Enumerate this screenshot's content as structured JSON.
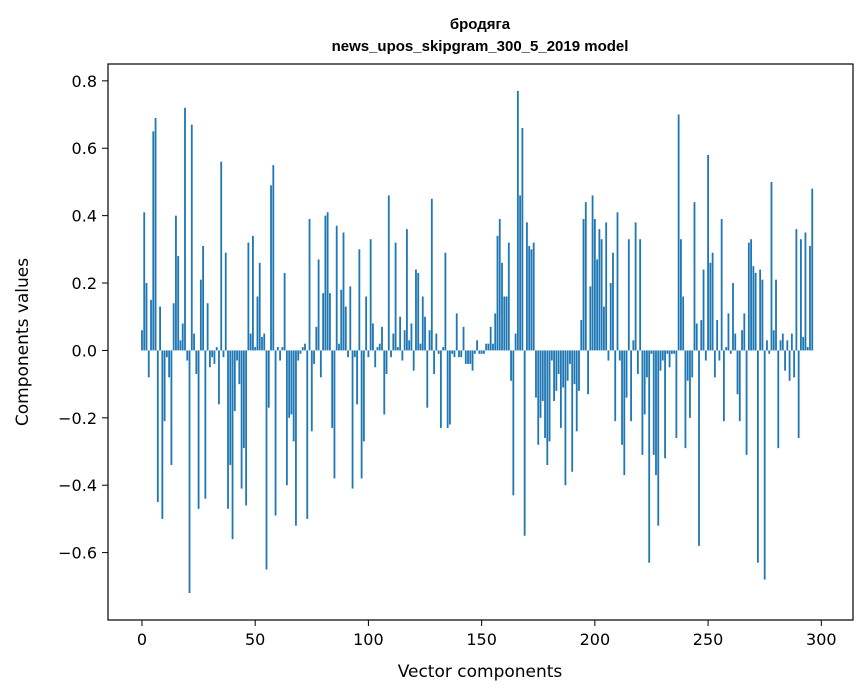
{
  "chart_data": {
    "type": "bar",
    "title": "бродяга",
    "subtitle": "news_upos_skipgram_300_5_2019 model",
    "xlabel": "Vector components",
    "ylabel": "Components values",
    "xlim": [
      -15,
      314
    ],
    "ylim": [
      -0.8,
      0.85
    ],
    "xticks": [
      0,
      50,
      100,
      150,
      200,
      250,
      300
    ],
    "yticks": [
      -0.6,
      -0.4,
      -0.2,
      0.0,
      0.2,
      0.4,
      0.6,
      0.8
    ],
    "ytick_labels": [
      "−0.6",
      "−0.4",
      "−0.2",
      "0.0",
      "0.2",
      "0.4",
      "0.6",
      "0.8"
    ],
    "grid": false,
    "bar_color": "#1f77b4",
    "values": [
      0.06,
      0.41,
      0.2,
      -0.08,
      0.15,
      0.65,
      0.69,
      -0.45,
      0.13,
      -0.5,
      -0.21,
      -0.02,
      -0.08,
      -0.34,
      0.14,
      0.4,
      0.28,
      0.03,
      0.08,
      0.72,
      -0.03,
      -0.72,
      0.67,
      0.05,
      -0.07,
      -0.47,
      0.21,
      0.31,
      -0.44,
      0.14,
      -0.05,
      -0.02,
      -0.04,
      0.01,
      -0.16,
      0.56,
      -0.02,
      0.29,
      -0.47,
      -0.34,
      -0.56,
      -0.18,
      -0.03,
      -0.1,
      -0.41,
      -0.29,
      -0.46,
      0.32,
      0.05,
      0.34,
      0.01,
      0.16,
      0.26,
      0.04,
      0.05,
      -0.65,
      -0.17,
      0.49,
      0.55,
      -0.49,
      0.01,
      -0.03,
      0.01,
      0.23,
      -0.4,
      -0.2,
      -0.19,
      -0.27,
      -0.52,
      -0.03,
      -0.01,
      0.01,
      0.02,
      -0.5,
      0.39,
      -0.24,
      -0.04,
      0.07,
      0.27,
      -0.08,
      0.17,
      0.4,
      0.41,
      0.17,
      -0.23,
      -0.38,
      0.37,
      0.02,
      0.18,
      0.35,
      0.13,
      -0.02,
      0.19,
      -0.41,
      -0.02,
      -0.16,
      0.3,
      -0.38,
      -0.27,
      0.16,
      -0.02,
      0.33,
      0.08,
      -0.05,
      0.01,
      0.02,
      0.07,
      -0.19,
      -0.07,
      0.46,
      -0.02,
      0.05,
      0.32,
      0.01,
      0.1,
      -0.03,
      0.06,
      0.36,
      0.03,
      0.08,
      -0.06,
      0.24,
      0.23,
      0.02,
      0.16,
      0.1,
      -0.17,
      0.06,
      0.45,
      -0.07,
      0.05,
      -0.01,
      -0.23,
      0.01,
      0.29,
      -0.23,
      -0.22,
      -0.01,
      -0.02,
      0.11,
      -0.02,
      -0.02,
      0.07,
      -0.04,
      -0.04,
      -0.04,
      -0.06,
      -0.01,
      0.03,
      -0.01,
      -0.01,
      -0.01,
      0.02,
      0.02,
      0.07,
      0.02,
      0.11,
      0.34,
      0.39,
      0.26,
      0.16,
      0.16,
      0.32,
      -0.09,
      -0.43,
      0.05,
      0.77,
      0.46,
      0.66,
      -0.55,
      0.38,
      0.31,
      0.3,
      0.32,
      -0.14,
      -0.28,
      -0.2,
      -0.15,
      -0.26,
      -0.34,
      -0.27,
      -0.03,
      -0.15,
      -0.12,
      -0.07,
      -0.23,
      -0.11,
      -0.4,
      -0.09,
      -0.04,
      -0.36,
      -0.1,
      -0.24,
      -0.12,
      0.09,
      0.39,
      0.44,
      -0.13,
      0.19,
      0.46,
      0.39,
      0.27,
      0.36,
      0.33,
      0.13,
      0.38,
      -0.03,
      0.2,
      0.29,
      -0.21,
      0.41,
      -0.03,
      -0.28,
      -0.37,
      -0.14,
      0.33,
      -0.21,
      0.03,
      0.38,
      -0.07,
      0.33,
      -0.31,
      -0.19,
      -0.08,
      -0.63,
      -0.01,
      -0.31,
      -0.37,
      -0.52,
      -0.06,
      -0.03,
      -0.32,
      -0.01,
      -0.05,
      -0.01,
      -0.01,
      -0.26,
      0.7,
      0.33,
      0.16,
      -0.29,
      -0.09,
      -0.2,
      -0.08,
      0.44,
      0.08,
      -0.58,
      0.09,
      0.24,
      -0.03,
      0.58,
      0.26,
      0.29,
      -0.08,
      0.09,
      -0.03,
      0.39,
      -0.21,
      0.01,
      0.11,
      -0.01,
      0.2,
      0.05,
      -0.13,
      -0.21,
      0.06,
      0.11,
      -0.31,
      0.32,
      0.33,
      0.25,
      0.23,
      -0.63,
      0.24,
      0.21,
      -0.68,
      0.03,
      -0.01,
      0.5,
      0.06,
      0.21,
      -0.29,
      0.03,
      0.05,
      -0.06,
      0.03,
      -0.09,
      0.05,
      -0.08,
      0.36,
      -0.26,
      0.33,
      0.04,
      0.35,
      0.01,
      0.31,
      0.48
    ]
  }
}
